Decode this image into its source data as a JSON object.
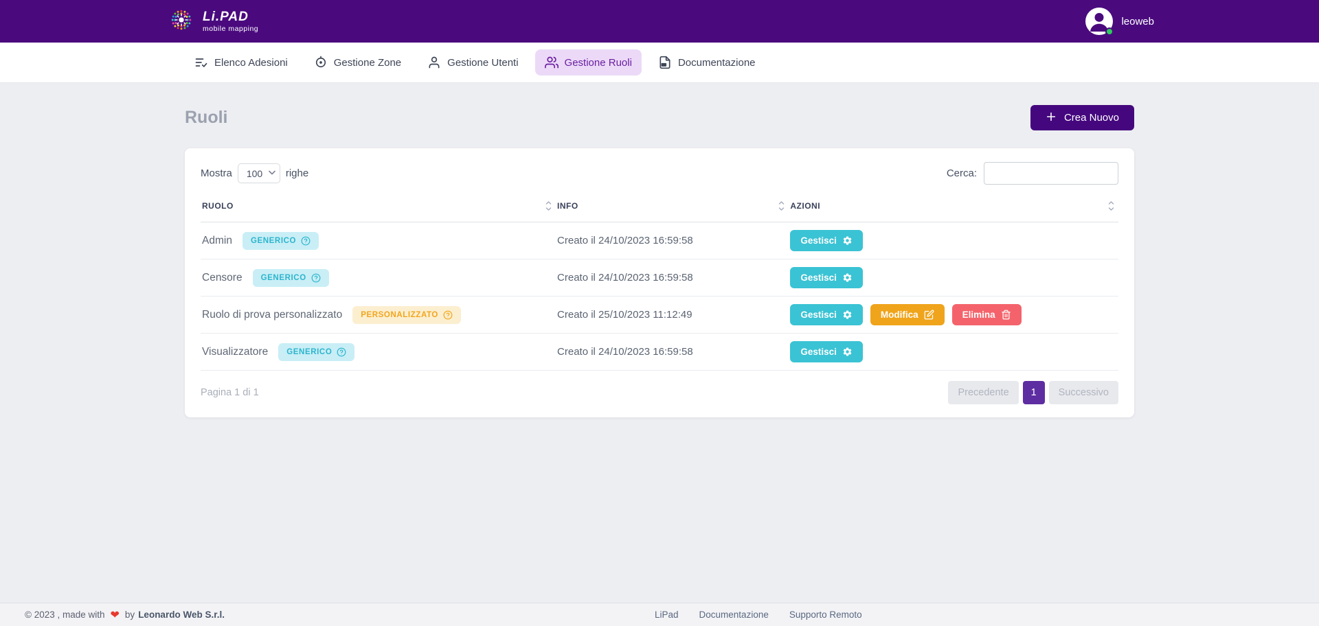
{
  "header": {
    "logo_title": "Li.PAD",
    "logo_subtitle": "mobile mapping",
    "username": "leoweb"
  },
  "nav": {
    "items": [
      {
        "label": "Elenco Adesioni",
        "icon": "list-check-icon",
        "active": false
      },
      {
        "label": "Gestione Zone",
        "icon": "target-icon",
        "active": false
      },
      {
        "label": "Gestione Utenti",
        "icon": "user-icon",
        "active": false
      },
      {
        "label": "Gestione Ruoli",
        "icon": "users-icon",
        "active": true
      },
      {
        "label": "Documentazione",
        "icon": "document-icon",
        "active": false
      }
    ]
  },
  "page": {
    "title": "Ruoli",
    "create_button": "Crea Nuovo"
  },
  "controls": {
    "show_label": "Mostra",
    "page_size": "100",
    "rows_label": "righe",
    "search_label": "Cerca:",
    "search_value": ""
  },
  "table": {
    "columns": [
      {
        "label": "RUOLO"
      },
      {
        "label": "INFO"
      },
      {
        "label": "AZIONI"
      }
    ],
    "rows": [
      {
        "name": "Admin",
        "badge": {
          "label": "GENERICO",
          "type": "generic",
          "icon": "help-circle-icon"
        },
        "info": "Creato il 24/10/2023 16:59:58",
        "actions": [
          {
            "label": "Gestisci",
            "type": "manage",
            "icon": "gear-icon"
          }
        ]
      },
      {
        "name": "Censore",
        "badge": {
          "label": "GENERICO",
          "type": "generic",
          "icon": "help-circle-icon"
        },
        "info": "Creato il 24/10/2023 16:59:58",
        "actions": [
          {
            "label": "Gestisci",
            "type": "manage",
            "icon": "gear-icon"
          }
        ]
      },
      {
        "name": "Ruolo di prova personalizzato",
        "badge": {
          "label": "PERSONALIZZATO",
          "type": "custom",
          "icon": "help-circle-icon"
        },
        "info": "Creato il 25/10/2023 11:12:49",
        "actions": [
          {
            "label": "Gestisci",
            "type": "manage",
            "icon": "gear-icon"
          },
          {
            "label": "Modifica",
            "type": "edit",
            "icon": "edit-icon"
          },
          {
            "label": "Elimina",
            "type": "delete",
            "icon": "trash-icon"
          }
        ]
      },
      {
        "name": "Visualizzatore",
        "badge": {
          "label": "GENERICO",
          "type": "generic",
          "icon": "help-circle-icon"
        },
        "info": "Creato il 24/10/2023 16:59:58",
        "actions": [
          {
            "label": "Gestisci",
            "type": "manage",
            "icon": "gear-icon"
          }
        ]
      }
    ]
  },
  "pagination": {
    "summary": "Pagina 1 di 1",
    "previous": "Precedente",
    "current": "1",
    "next": "Successivo"
  },
  "footer": {
    "copyright": "© 2023 , made with",
    "heart": "❤",
    "by": "by",
    "company": "Leonardo Web S.r.l.",
    "links": [
      "LiPad",
      "Documentazione",
      "Supporto Remoto"
    ]
  },
  "colors": {
    "header_bg": "#4a0a7e",
    "accent_purple": "#45077e",
    "active_tab_bg": "#ecd9f8",
    "active_tab_text": "#6a1fa0",
    "badge_generic_bg": "#c9eef6",
    "badge_generic_text": "#2cb5cd",
    "badge_custom_bg": "#fcefd0",
    "badge_custom_text": "#f2a51c",
    "manage_btn": "#3ac3d4",
    "edit_btn": "#f0a41b",
    "delete_btn": "#f4636b",
    "pagination_active": "#5e2da2",
    "online_green": "#2ecc5f",
    "body_bg": "#edeef2"
  }
}
